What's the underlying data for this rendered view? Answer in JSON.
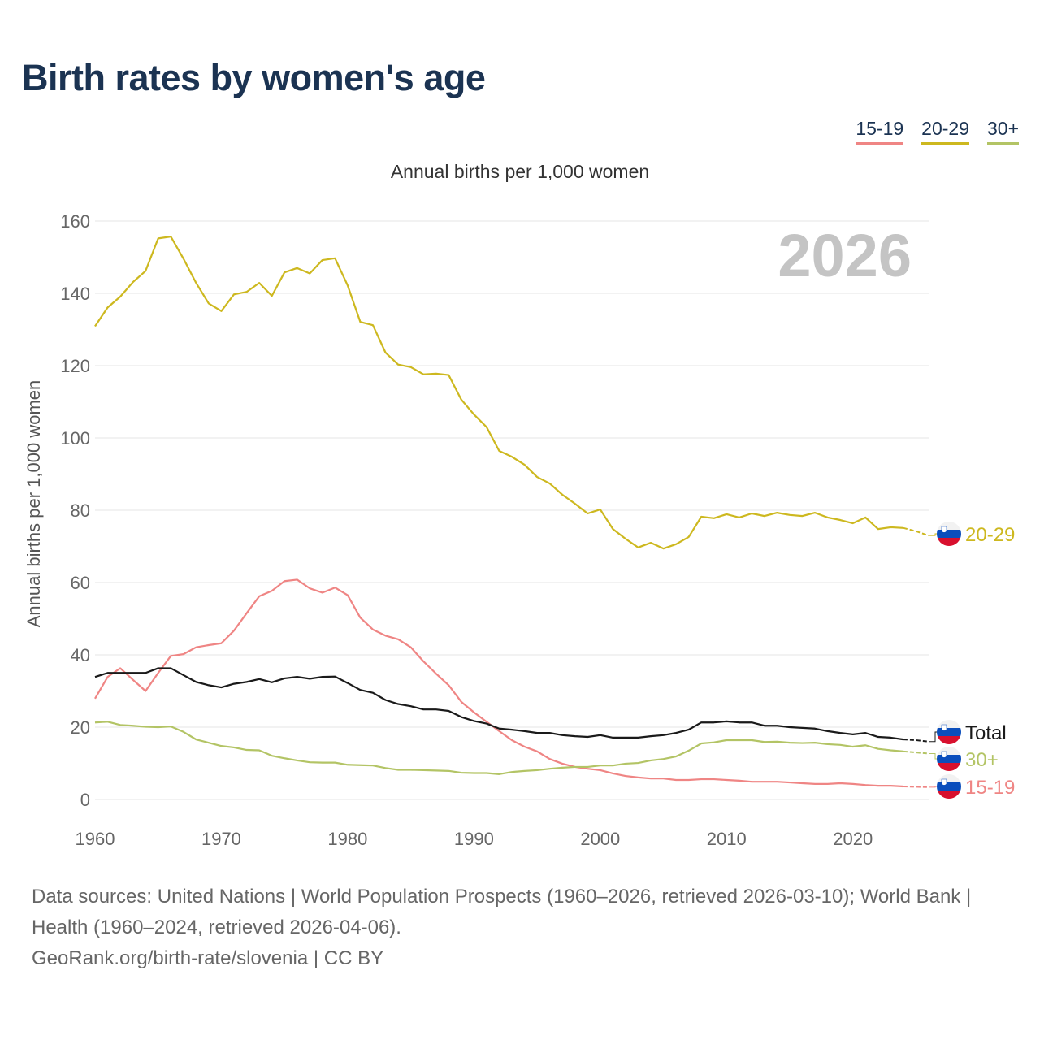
{
  "header": {
    "title": "Birth rates by women's age"
  },
  "legend": [
    {
      "label": "15-19",
      "color": "#ef8584"
    },
    {
      "label": "20-29",
      "color": "#cdb81f"
    },
    {
      "label": "30+",
      "color": "#b3c465"
    }
  ],
  "chart_data": {
    "type": "line",
    "title": "Birth rates by women's age",
    "subtitle": "Annual births per 1,000 women",
    "ylabel": "Annual births per 1,000 women",
    "xlabel": "",
    "year_watermark": "2026",
    "xlim": [
      1960,
      2026
    ],
    "ylim": [
      0,
      160
    ],
    "x_ticks": [
      "1960",
      "1970",
      "1980",
      "1990",
      "2000",
      "2010",
      "2020"
    ],
    "y_ticks": [
      "0",
      "20",
      "40",
      "60",
      "80",
      "100",
      "120",
      "140",
      "160"
    ],
    "grid": true,
    "projected_from": 2024,
    "x_start": 1960,
    "series": [
      {
        "name": "20-29",
        "end_label": "20-29",
        "color": "#cdb81f",
        "values": [
          130.9,
          136.1,
          139.1,
          143.1,
          146.2,
          155.2,
          155.7,
          149.6,
          142.9,
          137.2,
          135.1,
          139.7,
          140.4,
          142.9,
          139.3,
          145.8,
          147.0,
          145.5,
          149.2,
          149.7,
          142.2,
          132.1,
          131.2,
          123.6,
          120.3,
          119.6,
          117.6,
          117.8,
          117.4,
          110.6,
          106.5,
          103.0,
          96.4,
          94.8,
          92.6,
          89.2,
          87.4,
          84.3,
          81.8,
          79.1,
          80.2,
          74.8,
          72.1,
          69.7,
          71.0,
          69.4,
          70.6,
          72.6,
          78.2,
          77.8,
          78.9,
          78.0,
          79.1,
          78.4,
          79.3,
          78.7,
          78.4,
          79.3,
          78.0,
          77.3,
          76.4,
          78.0,
          74.8,
          75.3,
          75.1,
          74.2,
          73.0
        ]
      },
      {
        "name": "15-19",
        "end_label": "15-19",
        "color": "#ef8584",
        "values": [
          27.9,
          33.9,
          36.3,
          33.1,
          30.0,
          35.0,
          39.7,
          40.2,
          42.1,
          42.7,
          43.2,
          46.7,
          51.5,
          56.2,
          57.7,
          60.4,
          60.8,
          58.4,
          57.2,
          58.6,
          56.5,
          50.3,
          47.0,
          45.3,
          44.3,
          42.1,
          38.2,
          34.8,
          31.6,
          27.0,
          24.1,
          21.5,
          18.9,
          16.4,
          14.6,
          13.3,
          11.2,
          9.9,
          9.0,
          8.5,
          8.1,
          7.2,
          6.5,
          6.1,
          5.8,
          5.8,
          5.4,
          5.4,
          5.6,
          5.6,
          5.4,
          5.2,
          4.9,
          4.9,
          4.9,
          4.7,
          4.5,
          4.3,
          4.3,
          4.5,
          4.3,
          4.0,
          3.8,
          3.8,
          3.6,
          3.5,
          3.4
        ]
      },
      {
        "name": "Total",
        "end_label": "Total",
        "color": "#1a1a1a",
        "values": [
          33.9,
          35.0,
          35.0,
          35.0,
          35.0,
          36.3,
          36.3,
          34.4,
          32.5,
          31.6,
          31.0,
          32.0,
          32.5,
          33.3,
          32.4,
          33.5,
          33.9,
          33.4,
          33.9,
          34.0,
          32.2,
          30.3,
          29.5,
          27.5,
          26.4,
          25.8,
          24.9,
          24.9,
          24.5,
          22.8,
          21.7,
          21.0,
          19.6,
          19.3,
          18.9,
          18.4,
          18.4,
          17.8,
          17.5,
          17.3,
          17.8,
          17.1,
          17.1,
          17.1,
          17.5,
          17.8,
          18.4,
          19.3,
          21.3,
          21.3,
          21.6,
          21.3,
          21.3,
          20.4,
          20.4,
          20.0,
          19.8,
          19.6,
          18.9,
          18.4,
          18.0,
          18.4,
          17.3,
          17.1,
          16.6,
          16.4,
          16.0
        ]
      },
      {
        "name": "30+",
        "end_label": "30+",
        "color": "#b3c465",
        "values": [
          21.3,
          21.5,
          20.6,
          20.4,
          20.1,
          20.0,
          20.2,
          18.7,
          16.6,
          15.7,
          14.8,
          14.4,
          13.7,
          13.6,
          12.1,
          11.4,
          10.8,
          10.3,
          10.2,
          10.2,
          9.6,
          9.5,
          9.4,
          8.7,
          8.2,
          8.2,
          8.1,
          8.0,
          7.9,
          7.4,
          7.3,
          7.3,
          7.0,
          7.6,
          7.9,
          8.1,
          8.5,
          8.8,
          9.0,
          9.0,
          9.4,
          9.4,
          9.9,
          10.1,
          10.8,
          11.2,
          11.9,
          13.5,
          15.5,
          15.8,
          16.4,
          16.4,
          16.4,
          15.9,
          16.0,
          15.7,
          15.6,
          15.7,
          15.3,
          15.1,
          14.6,
          15.0,
          14.0,
          13.6,
          13.3,
          13.0,
          12.7
        ]
      }
    ]
  },
  "footer": {
    "sources": "Data sources: United Nations | World Population Prospects (1960–2026, retrieved 2026-03-10); World Bank | Health (1960–2024, retrieved 2026-04-06).",
    "link": "GeoRank.org/birth-rate/slovenia | CC BY"
  }
}
